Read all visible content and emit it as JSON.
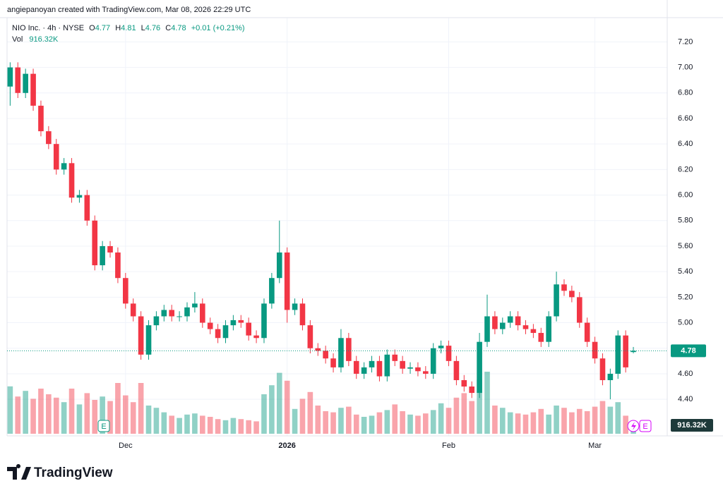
{
  "header": {
    "attribution": "angiepanoyan created with TradingView.com, Mar 08, 2026 22:29 UTC"
  },
  "chart_data": {
    "type": "candlestick",
    "legend": {
      "symbol": "NIO Inc. · 4h · NYSE",
      "open_label": "O",
      "open": 4.77,
      "high_label": "H",
      "high": 4.81,
      "low_label": "L",
      "low": 4.76,
      "close_label": "C",
      "close": 4.78,
      "change": "+0.01 (+0.21%)",
      "volume_label": "Vol"
    },
    "up_color": "#089981",
    "down_color": "#f23645",
    "open": [
      6.85,
      7.0,
      6.8,
      6.95,
      6.7,
      6.5,
      6.4,
      6.2,
      6.25,
      5.98,
      6.0,
      5.8,
      5.45,
      5.6,
      5.55,
      5.35,
      5.15,
      5.05,
      4.75,
      4.98,
      5.05,
      5.1,
      5.05,
      5.05,
      5.12,
      5.15,
      5.0,
      4.95,
      4.88,
      4.98,
      5.02,
      5.0,
      4.9,
      4.88,
      5.15,
      5.35,
      5.55,
      5.1,
      5.15,
      4.98,
      4.8,
      4.78,
      4.72,
      4.65,
      4.88,
      4.7,
      4.6,
      4.65,
      4.7,
      4.58,
      4.75,
      4.7,
      4.64,
      4.65,
      4.62,
      4.6,
      4.8,
      4.82,
      4.7,
      4.55,
      4.5,
      4.45,
      4.85,
      5.05,
      4.95,
      5.0,
      5.05,
      4.98,
      4.95,
      4.92,
      4.85,
      5.05,
      5.3,
      5.25,
      5.2,
      5.0,
      4.85,
      4.72,
      4.55,
      4.6,
      4.9,
      4.77
    ],
    "high": [
      7.04,
      7.04,
      6.99,
      6.99,
      6.74,
      6.54,
      6.44,
      6.29,
      6.29,
      6.04,
      6.04,
      5.84,
      5.64,
      5.64,
      5.59,
      5.39,
      5.19,
      5.09,
      5.02,
      5.09,
      5.14,
      5.14,
      5.09,
      5.16,
      5.24,
      5.19,
      5.04,
      4.99,
      5.02,
      5.06,
      5.06,
      5.04,
      4.94,
      5.19,
      5.39,
      5.8,
      5.59,
      5.19,
      5.19,
      5.02,
      4.84,
      4.82,
      4.76,
      4.95,
      4.92,
      4.74,
      4.69,
      4.74,
      4.74,
      4.79,
      4.79,
      4.74,
      4.69,
      4.69,
      4.66,
      4.84,
      4.86,
      4.86,
      4.74,
      4.59,
      4.54,
      4.92,
      5.22,
      5.09,
      5.04,
      5.09,
      5.09,
      5.02,
      4.99,
      4.96,
      5.09,
      5.4,
      5.34,
      5.29,
      5.24,
      5.04,
      4.89,
      4.76,
      4.64,
      4.94,
      4.94,
      4.81
    ],
    "low": [
      6.7,
      6.76,
      6.76,
      6.66,
      6.46,
      6.36,
      6.16,
      6.16,
      5.94,
      5.94,
      5.76,
      5.41,
      5.41,
      5.51,
      5.31,
      5.11,
      5.01,
      4.71,
      4.71,
      4.94,
      5.01,
      5.01,
      5.01,
      5.01,
      5.08,
      4.96,
      4.91,
      4.84,
      4.84,
      4.94,
      4.96,
      4.86,
      4.84,
      4.84,
      5.11,
      5.31,
      5.0,
      5.06,
      4.94,
      4.76,
      4.74,
      4.68,
      4.61,
      4.61,
      4.66,
      4.56,
      4.56,
      4.61,
      4.54,
      4.54,
      4.66,
      4.6,
      4.6,
      4.58,
      4.56,
      4.56,
      4.76,
      4.66,
      4.51,
      4.46,
      4.41,
      4.41,
      4.81,
      4.91,
      4.91,
      4.96,
      4.94,
      4.91,
      4.88,
      4.81,
      4.81,
      5.01,
      5.21,
      5.16,
      4.96,
      4.81,
      4.68,
      4.51,
      4.4,
      4.56,
      4.61,
      4.76
    ],
    "close": [
      7.0,
      6.8,
      6.95,
      6.7,
      6.5,
      6.4,
      6.2,
      6.25,
      5.98,
      6.0,
      5.8,
      5.45,
      5.6,
      5.55,
      5.35,
      5.15,
      5.05,
      4.75,
      4.98,
      5.05,
      5.1,
      5.05,
      5.05,
      5.12,
      5.15,
      5.0,
      4.95,
      4.88,
      4.98,
      5.02,
      5.0,
      4.9,
      4.88,
      5.15,
      5.35,
      5.55,
      5.1,
      5.15,
      4.98,
      4.8,
      4.78,
      4.72,
      4.65,
      4.88,
      4.7,
      4.6,
      4.65,
      4.7,
      4.58,
      4.75,
      4.7,
      4.64,
      4.65,
      4.62,
      4.6,
      4.8,
      4.82,
      4.7,
      4.55,
      4.5,
      4.45,
      4.85,
      5.05,
      4.95,
      5.0,
      5.05,
      4.98,
      4.95,
      4.92,
      4.85,
      5.05,
      5.3,
      5.25,
      5.2,
      5.0,
      4.85,
      4.72,
      4.55,
      4.6,
      4.9,
      4.65,
      4.78
    ],
    "volume": {
      "values": [
        4200000,
        3300000,
        3800000,
        3100000,
        4000000,
        3500000,
        3200000,
        2800000,
        4000000,
        2600000,
        3600000,
        3000000,
        3300000,
        2900000,
        4500000,
        3400000,
        2800000,
        4500000,
        2500000,
        2300000,
        1900000,
        1600000,
        1400000,
        1700000,
        1800000,
        1600000,
        1500000,
        1300000,
        1200000,
        1400000,
        1300000,
        1200000,
        1100000,
        3500000,
        4300000,
        5400000,
        4700000,
        2200000,
        3100000,
        3700000,
        2500000,
        2000000,
        1900000,
        2300000,
        2400000,
        1700000,
        1500000,
        1600000,
        1900000,
        2100000,
        2600000,
        2000000,
        1700000,
        1600000,
        1800000,
        2100000,
        2700000,
        2300000,
        3200000,
        3600000,
        2900000,
        4800000,
        5500000,
        2500000,
        2300000,
        1900000,
        1800000,
        1700000,
        1900000,
        2200000,
        1700000,
        2500000,
        2300000,
        1900000,
        2200000,
        2000000,
        2400000,
        2900000,
        2400000,
        2800000,
        1600000,
        916320
      ],
      "last_label": "916.32K"
    },
    "xlim": [
      -0.4,
      85.4
    ],
    "xticks": [
      {
        "value": 15,
        "label": "Dec"
      },
      {
        "value": 36,
        "label": "2026"
      },
      {
        "value": 57,
        "label": "Feb"
      },
      {
        "value": 76,
        "label": "Mar"
      }
    ],
    "ylim": [
      4.13,
      7.39
    ],
    "yticks": [
      {
        "value": 4.4,
        "label": "4.40"
      },
      {
        "value": 4.6,
        "label": "4.60"
      },
      {
        "value": 4.8,
        "label": "4.80"
      },
      {
        "value": 5.0,
        "label": "5.00"
      },
      {
        "value": 5.2,
        "label": "5.20"
      },
      {
        "value": 5.4,
        "label": "5.40"
      },
      {
        "value": 5.6,
        "label": "5.60"
      },
      {
        "value": 5.8,
        "label": "5.80"
      },
      {
        "value": 6.0,
        "label": "6.00"
      },
      {
        "value": 6.2,
        "label": "6.20"
      },
      {
        "value": 6.4,
        "label": "6.40"
      },
      {
        "value": 6.6,
        "label": "6.60"
      },
      {
        "value": 6.8,
        "label": "6.80"
      },
      {
        "value": 7.0,
        "label": "7.00"
      },
      {
        "value": 7.2,
        "label": "7.20"
      }
    ],
    "grid": true,
    "events": [
      "E",
      "E"
    ]
  },
  "footer": {
    "brand": "TradingView"
  }
}
